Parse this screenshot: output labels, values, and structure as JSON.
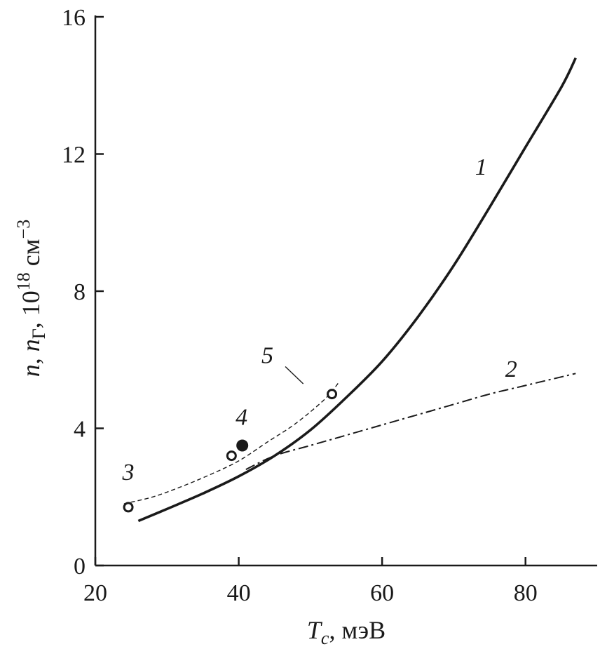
{
  "chart_data": {
    "type": "line",
    "xlabel": "Tc, мэВ",
    "xlabel_parts": {
      "symbol": "T",
      "subscript": "c",
      "unit": ", мэВ"
    },
    "ylabel": "n, nГ, 10^18 см^−3",
    "ylabel_parts": {
      "n": "n",
      "sep1": ", ",
      "n2": "n",
      "sub2": "Г",
      "sep2": ", 10",
      "exp1": "18",
      "unit": " см",
      "exp2": "−3"
    },
    "xlim": [
      20,
      90
    ],
    "ylim": [
      0,
      16
    ],
    "xticks": [
      20,
      40,
      60,
      80
    ],
    "yticks": [
      0,
      4,
      8,
      12,
      16
    ],
    "grid": false,
    "legend": "none",
    "series": [
      {
        "id": "1",
        "label": "1",
        "style": "solid",
        "x": [
          26,
          30,
          35,
          40,
          45,
          50,
          55,
          60,
          65,
          70,
          75,
          80,
          85,
          87
        ],
        "y": [
          1.3,
          1.65,
          2.1,
          2.6,
          3.2,
          3.95,
          4.9,
          5.95,
          7.25,
          8.75,
          10.45,
          12.2,
          13.95,
          14.8
        ]
      },
      {
        "id": "2",
        "label": "2",
        "style": "dash-dot",
        "x": [
          41,
          45,
          50,
          55,
          60,
          65,
          70,
          75,
          80,
          85,
          87
        ],
        "y": [
          2.8,
          3.2,
          3.5,
          3.8,
          4.1,
          4.4,
          4.7,
          5.0,
          5.25,
          5.5,
          5.6
        ]
      },
      {
        "id": "5",
        "label": "5",
        "style": "dashed",
        "x": [
          24,
          28,
          32,
          36,
          40,
          44,
          48,
          52,
          54
        ],
        "y": [
          1.8,
          2.0,
          2.3,
          2.65,
          3.05,
          3.6,
          4.15,
          4.85,
          5.35
        ]
      },
      {
        "id": "3",
        "label": "3",
        "style": "open-circle",
        "x": [
          24.6,
          39,
          53
        ],
        "y": [
          1.7,
          3.2,
          5.0
        ]
      },
      {
        "id": "4",
        "label": "4",
        "style": "filled-circle",
        "x": [
          40.5
        ],
        "y": [
          3.5
        ]
      }
    ],
    "annotations": [
      {
        "text": "1",
        "x": 73.8,
        "y": 11.4
      },
      {
        "text": "2",
        "x": 78.0,
        "y": 5.5
      },
      {
        "text": "3",
        "x": 24.6,
        "y": 2.5
      },
      {
        "text": "4",
        "x": 40.4,
        "y": 4.1
      },
      {
        "text": "5",
        "x": 44.0,
        "y": 5.9
      }
    ],
    "leader_line": {
      "series": "5",
      "from": [
        46.5,
        5.8
      ],
      "to": [
        49.0,
        5.3
      ]
    }
  }
}
